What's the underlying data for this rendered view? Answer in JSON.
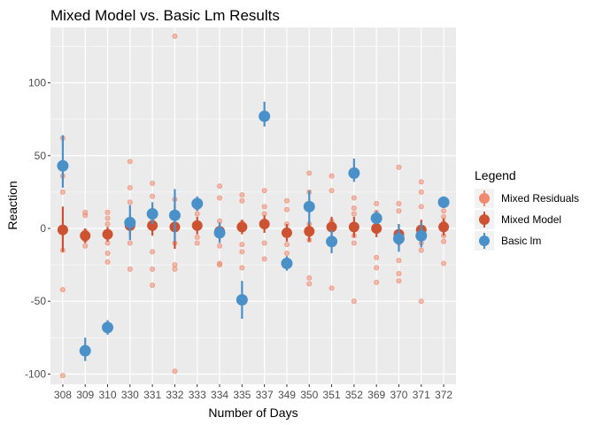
{
  "chart_data": {
    "type": "scatter",
    "title": "Mixed Model vs. Basic Lm Results",
    "xlabel": "Number of Days",
    "ylabel": "Reaction",
    "categories": [
      "308",
      "309",
      "310",
      "330",
      "331",
      "332",
      "333",
      "334",
      "335",
      "337",
      "349",
      "350",
      "351",
      "352",
      "369",
      "370",
      "371",
      "372"
    ],
    "ylim": [
      -107,
      138
    ],
    "yticks": [
      -100,
      -50,
      0,
      50,
      100
    ],
    "grid": true,
    "legend": {
      "title": "Legend",
      "position": "right",
      "entries": [
        "Mixed Residuals",
        "Mixed Model",
        "Basic lm"
      ]
    },
    "colors": {
      "Mixed Residuals": "#f08a70",
      "Mixed Model": "#cc5232",
      "Basic lm": "#4a90c9"
    },
    "series": [
      {
        "name": "Mixed Residuals",
        "kind": "points",
        "points": [
          {
            "x": "308",
            "y": 62
          },
          {
            "x": "308",
            "y": 36
          },
          {
            "x": "308",
            "y": 25
          },
          {
            "x": "308",
            "y": -15
          },
          {
            "x": "308",
            "y": -42
          },
          {
            "x": "308",
            "y": -101
          },
          {
            "x": "309",
            "y": 11
          },
          {
            "x": "309",
            "y": 9
          },
          {
            "x": "309",
            "y": -2
          },
          {
            "x": "309",
            "y": -8
          },
          {
            "x": "309",
            "y": -12
          },
          {
            "x": "310",
            "y": 11
          },
          {
            "x": "310",
            "y": 7
          },
          {
            "x": "310",
            "y": 3
          },
          {
            "x": "310",
            "y": -10
          },
          {
            "x": "310",
            "y": -17
          },
          {
            "x": "310",
            "y": -23
          },
          {
            "x": "330",
            "y": 46
          },
          {
            "x": "330",
            "y": 28
          },
          {
            "x": "330",
            "y": 18
          },
          {
            "x": "330",
            "y": 5
          },
          {
            "x": "330",
            "y": -10
          },
          {
            "x": "330",
            "y": -28
          },
          {
            "x": "331",
            "y": 31
          },
          {
            "x": "331",
            "y": 22
          },
          {
            "x": "331",
            "y": 5
          },
          {
            "x": "331",
            "y": -16
          },
          {
            "x": "331",
            "y": -28
          },
          {
            "x": "331",
            "y": -39
          },
          {
            "x": "332",
            "y": 132
          },
          {
            "x": "332",
            "y": 20
          },
          {
            "x": "332",
            "y": 3
          },
          {
            "x": "332",
            "y": -10
          },
          {
            "x": "332",
            "y": -25
          },
          {
            "x": "332",
            "y": -28
          },
          {
            "x": "332",
            "y": -98
          },
          {
            "x": "333",
            "y": 14
          },
          {
            "x": "333",
            "y": 10
          },
          {
            "x": "333",
            "y": 4
          },
          {
            "x": "333",
            "y": -6
          },
          {
            "x": "333",
            "y": -10
          },
          {
            "x": "334",
            "y": 29
          },
          {
            "x": "334",
            "y": 21
          },
          {
            "x": "334",
            "y": 5
          },
          {
            "x": "334",
            "y": -12
          },
          {
            "x": "334",
            "y": -24
          },
          {
            "x": "334",
            "y": -25
          },
          {
            "x": "335",
            "y": 23
          },
          {
            "x": "335",
            "y": 19
          },
          {
            "x": "335",
            "y": 4
          },
          {
            "x": "335",
            "y": 1
          },
          {
            "x": "335",
            "y": -11
          },
          {
            "x": "335",
            "y": -16
          },
          {
            "x": "335",
            "y": -27
          },
          {
            "x": "337",
            "y": 26
          },
          {
            "x": "337",
            "y": 15
          },
          {
            "x": "337",
            "y": 10
          },
          {
            "x": "337",
            "y": 5
          },
          {
            "x": "337",
            "y": -10
          },
          {
            "x": "337",
            "y": -21
          },
          {
            "x": "349",
            "y": 19
          },
          {
            "x": "349",
            "y": 13
          },
          {
            "x": "349",
            "y": 3
          },
          {
            "x": "349",
            "y": -11
          },
          {
            "x": "349",
            "y": -17
          },
          {
            "x": "350",
            "y": 38
          },
          {
            "x": "350",
            "y": 25
          },
          {
            "x": "350",
            "y": 3
          },
          {
            "x": "350",
            "y": -8
          },
          {
            "x": "350",
            "y": -34
          },
          {
            "x": "350",
            "y": -38
          },
          {
            "x": "351",
            "y": 36
          },
          {
            "x": "351",
            "y": 26
          },
          {
            "x": "351",
            "y": 5
          },
          {
            "x": "351",
            "y": -7
          },
          {
            "x": "351",
            "y": -41
          },
          {
            "x": "352",
            "y": 21
          },
          {
            "x": "352",
            "y": 14
          },
          {
            "x": "352",
            "y": 10
          },
          {
            "x": "352",
            "y": -5
          },
          {
            "x": "352",
            "y": -10
          },
          {
            "x": "352",
            "y": -50
          },
          {
            "x": "369",
            "y": 17
          },
          {
            "x": "369",
            "y": 11
          },
          {
            "x": "369",
            "y": -2
          },
          {
            "x": "369",
            "y": -20
          },
          {
            "x": "369",
            "y": -27
          },
          {
            "x": "369",
            "y": -37
          },
          {
            "x": "370",
            "y": 42
          },
          {
            "x": "370",
            "y": 17
          },
          {
            "x": "370",
            "y": 12
          },
          {
            "x": "370",
            "y": -10
          },
          {
            "x": "370",
            "y": -22
          },
          {
            "x": "370",
            "y": -31
          },
          {
            "x": "370",
            "y": -36
          },
          {
            "x": "371",
            "y": 32
          },
          {
            "x": "371",
            "y": 25
          },
          {
            "x": "371",
            "y": 15
          },
          {
            "x": "371",
            "y": -10
          },
          {
            "x": "371",
            "y": -15
          },
          {
            "x": "371",
            "y": -50
          },
          {
            "x": "372",
            "y": 12
          },
          {
            "x": "372",
            "y": 8
          },
          {
            "x": "372",
            "y": 4
          },
          {
            "x": "372",
            "y": -5
          },
          {
            "x": "372",
            "y": -9
          },
          {
            "x": "372",
            "y": -24
          }
        ]
      },
      {
        "name": "Mixed Model",
        "kind": "pointrange",
        "estimates": [
          -1,
          -5,
          -4,
          2,
          2,
          1,
          2,
          -2,
          1,
          3,
          -3,
          -2,
          1,
          1,
          0,
          -4,
          -1,
          1
        ],
        "ranges": [
          [
            -16,
            15
          ],
          [
            -10,
            0
          ],
          [
            -9,
            1
          ],
          [
            -5,
            9
          ],
          [
            -5,
            9
          ],
          [
            -14,
            16
          ],
          [
            -4,
            8
          ],
          [
            -8,
            4
          ],
          [
            -4,
            6
          ],
          [
            -3,
            9
          ],
          [
            -9,
            3
          ],
          [
            -9,
            5
          ],
          [
            -6,
            8
          ],
          [
            -6,
            8
          ],
          [
            -6,
            6
          ],
          [
            -11,
            3
          ],
          [
            -8,
            6
          ],
          [
            -5,
            7
          ]
        ]
      },
      {
        "name": "Basic lm",
        "kind": "pointrange",
        "estimates": [
          43,
          -84,
          -68,
          4,
          10,
          9,
          17,
          -3,
          -49,
          77,
          -24,
          15,
          -9,
          38,
          7,
          -7,
          -5,
          18
        ],
        "ranges": [
          [
            28,
            64
          ],
          [
            -91,
            -75
          ],
          [
            -73,
            -63
          ],
          [
            -8,
            16
          ],
          [
            3,
            18
          ],
          [
            -9,
            27
          ],
          [
            12,
            22
          ],
          [
            -10,
            4
          ],
          [
            -62,
            -36
          ],
          [
            70,
            87
          ],
          [
            -29,
            -19
          ],
          [
            3,
            26
          ],
          [
            -17,
            -1
          ],
          [
            32,
            48
          ],
          [
            3,
            12
          ],
          [
            -16,
            3
          ],
          [
            -13,
            4
          ],
          [
            14,
            22
          ]
        ]
      }
    ]
  }
}
